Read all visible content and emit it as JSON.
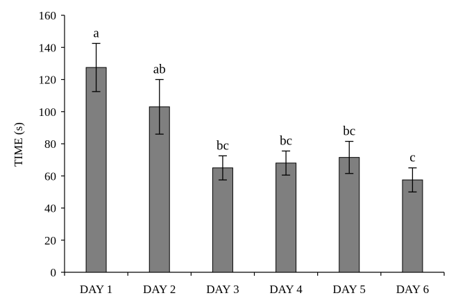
{
  "chart_data": {
    "type": "bar",
    "title": "",
    "xlabel": "",
    "ylabel": "TIME (s)",
    "ylim": [
      0,
      160
    ],
    "yticks": [
      0,
      20,
      40,
      60,
      80,
      100,
      120,
      140,
      160
    ],
    "categories": [
      "DAY 1",
      "DAY 2",
      "DAY 3",
      "DAY 4",
      "DAY 5",
      "DAY 6"
    ],
    "values": [
      127.5,
      103,
      65,
      68,
      71.5,
      57.5
    ],
    "error": [
      15,
      17,
      7.5,
      7.5,
      10,
      7.5
    ],
    "significance": [
      "a",
      "ab",
      "bc",
      "bc",
      "bc",
      "c"
    ],
    "grid": false,
    "bar_color": "#7f7f7f",
    "bar_edge_color": "#000000"
  }
}
